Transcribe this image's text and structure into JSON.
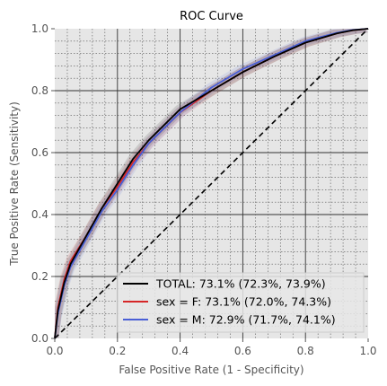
{
  "chart_data": {
    "type": "line",
    "title": "ROC Curve",
    "xlabel": "False Positive Rate (1 - Specificity)",
    "ylabel": "True Positive Rate (Sensitivity)",
    "xlim": [
      0.0,
      1.0
    ],
    "ylim": [
      0.0,
      1.0
    ],
    "xticks": [
      "0.0",
      "0.2",
      "0.4",
      "0.6",
      "0.8",
      "1.0"
    ],
    "yticks": [
      "0.0",
      "0.2",
      "0.4",
      "0.6",
      "0.8",
      "1.0"
    ],
    "grid": true,
    "legend_position": "lower-right",
    "series": [
      {
        "name": "TOTAL: 73.1% (72.3%, 73.9%)",
        "color": "#000000",
        "x": [
          0,
          0.01,
          0.03,
          0.05,
          0.1,
          0.15,
          0.2,
          0.25,
          0.3,
          0.4,
          0.5,
          0.6,
          0.7,
          0.8,
          0.9,
          0.95,
          1.0
        ],
        "y": [
          0,
          0.09,
          0.18,
          0.24,
          0.33,
          0.42,
          0.5,
          0.58,
          0.64,
          0.74,
          0.8,
          0.86,
          0.91,
          0.955,
          0.985,
          0.995,
          1.0
        ]
      },
      {
        "name": "sex = F: 73.1% (72.0%, 74.3%)",
        "color": "#d62728",
        "x": [
          0,
          0.01,
          0.03,
          0.05,
          0.1,
          0.15,
          0.2,
          0.25,
          0.3,
          0.4,
          0.5,
          0.6,
          0.7,
          0.8,
          0.9,
          0.95,
          1.0
        ],
        "y": [
          0,
          0.1,
          0.19,
          0.25,
          0.33,
          0.42,
          0.49,
          0.57,
          0.63,
          0.73,
          0.8,
          0.86,
          0.91,
          0.955,
          0.985,
          0.995,
          1.0
        ]
      },
      {
        "name": "sex = M: 72.9% (71.7%, 74.1%)",
        "color": "#4a5fd6",
        "x": [
          0,
          0.01,
          0.03,
          0.05,
          0.1,
          0.15,
          0.2,
          0.25,
          0.3,
          0.4,
          0.5,
          0.6,
          0.7,
          0.8,
          0.9,
          0.95,
          1.0
        ],
        "y": [
          0,
          0.08,
          0.17,
          0.23,
          0.32,
          0.41,
          0.48,
          0.56,
          0.63,
          0.73,
          0.81,
          0.87,
          0.915,
          0.96,
          0.987,
          0.996,
          1.0
        ]
      }
    ],
    "reference_line": {
      "x": [
        0,
        1
      ],
      "y": [
        0,
        1
      ],
      "color": "#000000",
      "style": "dashed"
    }
  }
}
